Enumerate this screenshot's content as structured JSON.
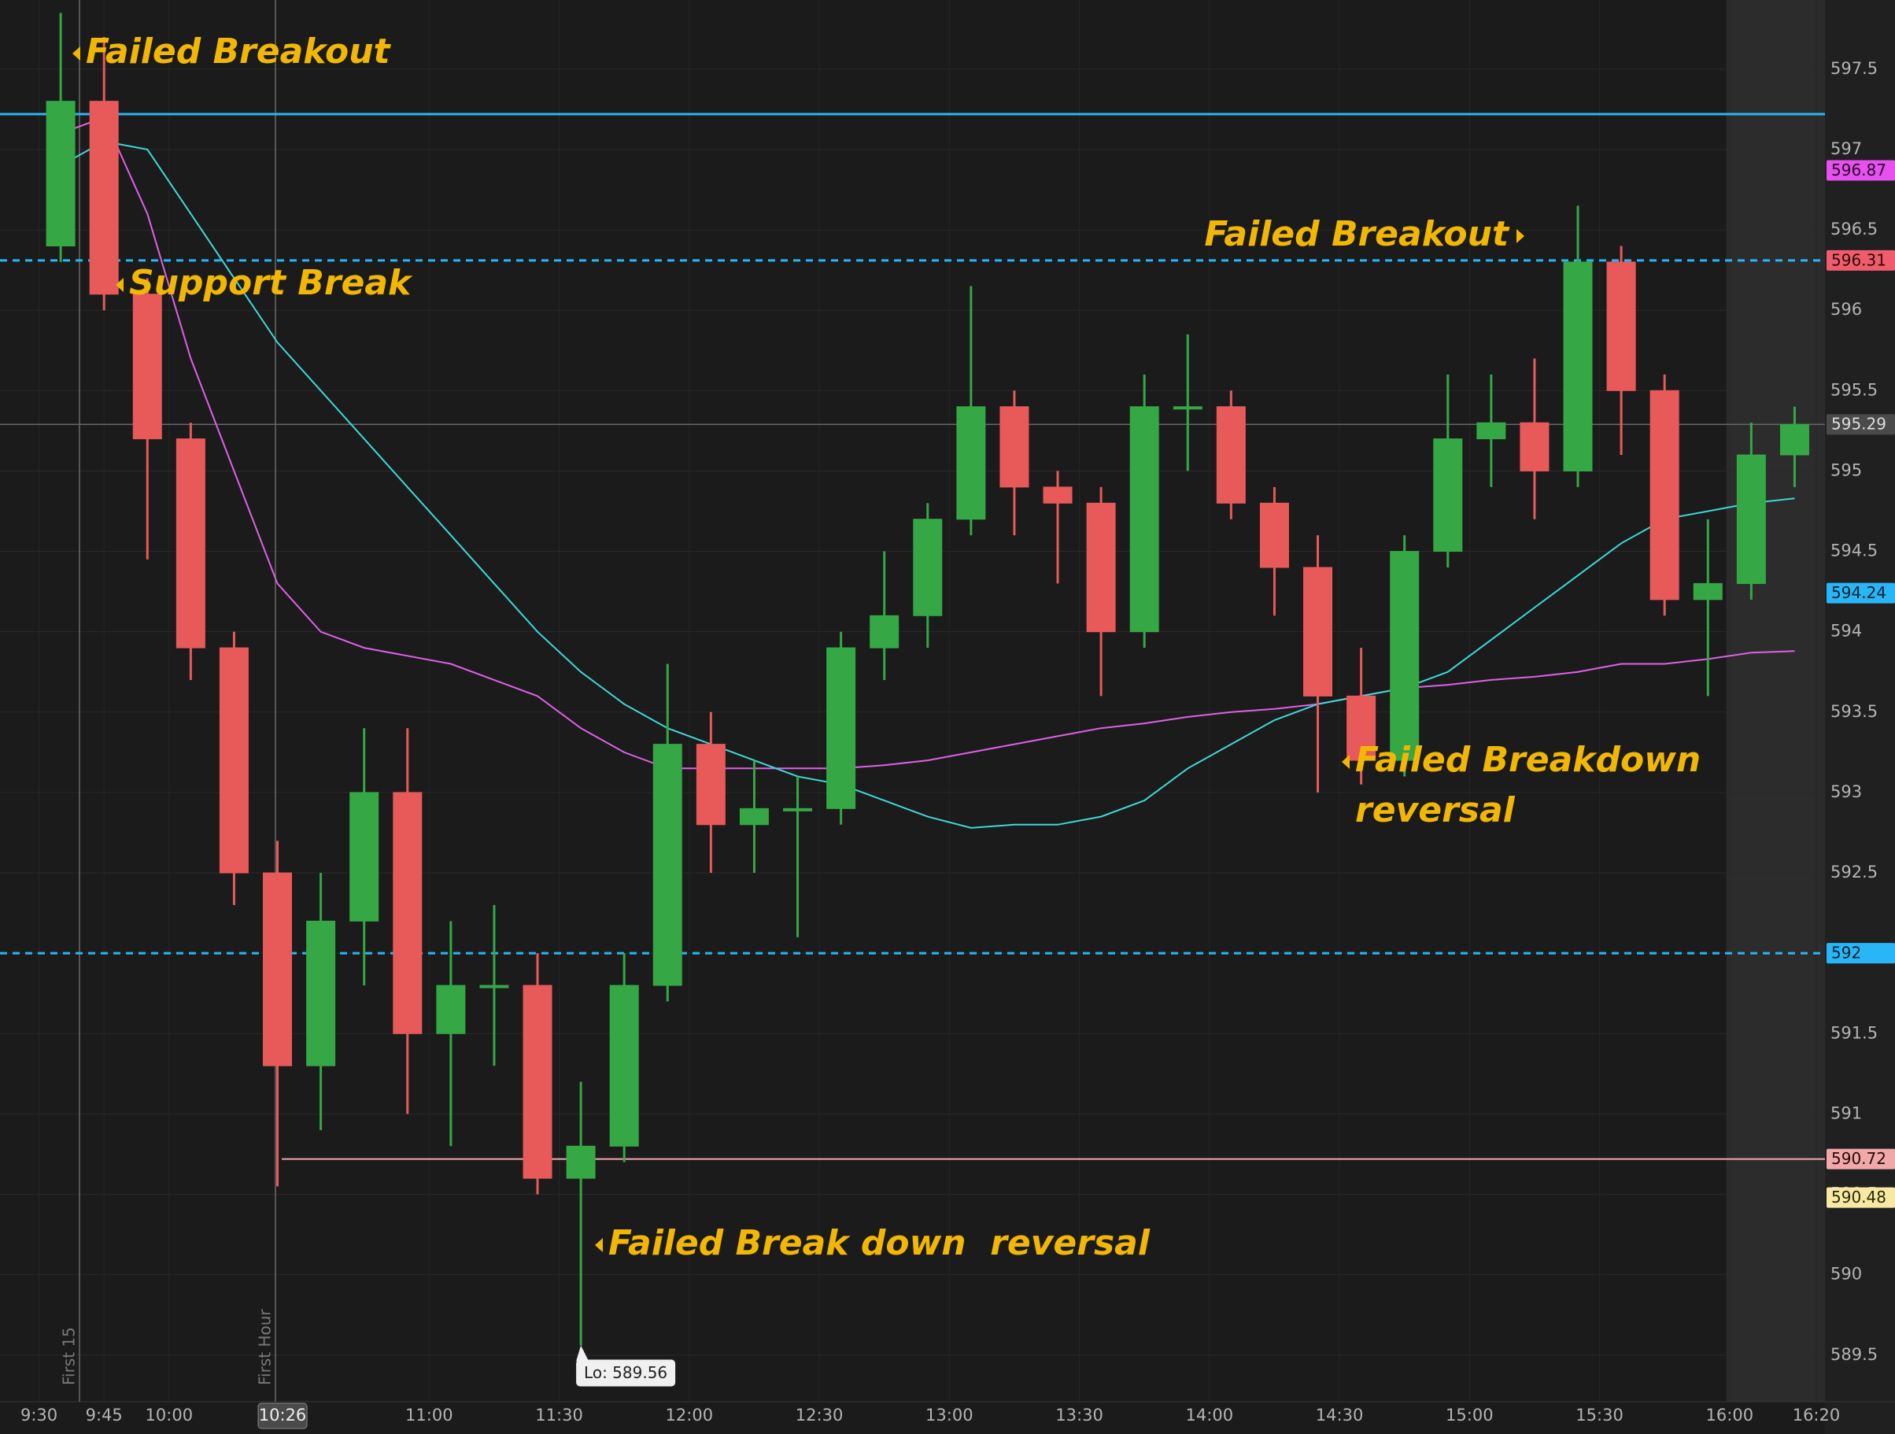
{
  "chart_data": {
    "type": "candlestick",
    "x": [
      "9:30",
      "9:40",
      "9:50",
      "10:00",
      "10:10",
      "10:20",
      "10:30",
      "10:40",
      "10:50",
      "11:00",
      "11:10",
      "11:20",
      "11:30",
      "11:40",
      "11:50",
      "12:00",
      "12:10",
      "12:20",
      "12:30",
      "12:40",
      "12:50",
      "13:00",
      "13:10",
      "13:20",
      "13:30",
      "13:40",
      "13:50",
      "14:00",
      "14:10",
      "14:20",
      "14:30",
      "14:40",
      "14:50",
      "15:00",
      "15:10",
      "15:20",
      "15:30",
      "15:40",
      "15:50",
      "16:00",
      "16:10"
    ],
    "open": [
      596.4,
      597.3,
      596.1,
      595.2,
      593.9,
      592.5,
      591.3,
      592.2,
      593.0,
      591.5,
      591.8,
      591.8,
      590.6,
      590.8,
      591.8,
      593.3,
      592.8,
      592.9,
      592.9,
      593.9,
      594.1,
      594.7,
      595.4,
      594.9,
      594.8,
      594.0,
      595.4,
      595.4,
      594.8,
      594.4,
      593.6,
      593.2,
      594.5,
      595.2,
      595.3,
      595.0,
      596.3,
      595.5,
      594.2,
      594.3,
      595.1
    ],
    "high": [
      597.85,
      597.7,
      596.2,
      595.3,
      594.0,
      592.7,
      592.5,
      593.4,
      593.4,
      592.2,
      592.3,
      592.0,
      591.2,
      592.0,
      593.8,
      593.5,
      593.2,
      593.1,
      594.0,
      594.5,
      594.8,
      596.15,
      595.5,
      595.0,
      594.9,
      595.6,
      595.85,
      595.5,
      594.9,
      594.6,
      593.9,
      594.6,
      595.6,
      595.6,
      595.7,
      596.65,
      596.4,
      595.6,
      594.7,
      595.3,
      595.4
    ],
    "low": [
      596.3,
      596.0,
      594.45,
      593.7,
      592.3,
      590.55,
      590.9,
      591.8,
      591.0,
      590.8,
      591.3,
      590.5,
      589.56,
      590.7,
      591.7,
      592.5,
      592.5,
      592.1,
      592.8,
      593.7,
      593.9,
      594.6,
      594.6,
      594.3,
      593.6,
      593.9,
      595.0,
      594.7,
      594.1,
      593.0,
      593.05,
      593.1,
      594.4,
      594.9,
      594.7,
      594.9,
      595.1,
      594.1,
      593.6,
      594.2,
      594.9
    ],
    "close": [
      597.3,
      596.1,
      595.2,
      593.9,
      592.5,
      591.3,
      592.2,
      593.0,
      591.5,
      591.8,
      591.8,
      590.6,
      590.8,
      591.8,
      593.3,
      592.8,
      592.9,
      592.9,
      593.9,
      594.1,
      594.7,
      595.4,
      594.9,
      594.8,
      594.0,
      595.4,
      595.4,
      594.8,
      594.4,
      593.6,
      593.2,
      594.5,
      595.2,
      595.3,
      595.0,
      596.3,
      595.5,
      594.2,
      594.3,
      595.1,
      595.29
    ],
    "up_color": "#35a845",
    "down_color": "#e85a5a",
    "moving_averages": [
      {
        "color": "#e060e8",
        "values": [
          597.1,
          597.2,
          596.6,
          595.7,
          595.0,
          594.3,
          594.0,
          593.9,
          593.85,
          593.8,
          593.7,
          593.6,
          593.4,
          593.25,
          593.15,
          593.15,
          593.15,
          593.15,
          593.15,
          593.17,
          593.2,
          593.25,
          593.3,
          593.35,
          593.4,
          593.43,
          593.47,
          593.5,
          593.52,
          593.55,
          593.6,
          593.65,
          593.67,
          593.7,
          593.72,
          593.75,
          593.8,
          593.8,
          593.83,
          593.87,
          593.88
        ]
      },
      {
        "color": "#3fd8d8",
        "values": [
          596.9,
          597.05,
          597.0,
          596.6,
          596.2,
          595.8,
          595.5,
          595.2,
          594.9,
          594.6,
          594.3,
          594.0,
          593.75,
          593.55,
          593.4,
          593.3,
          593.2,
          593.1,
          593.05,
          592.95,
          592.85,
          592.78,
          592.8,
          592.8,
          592.85,
          592.95,
          593.15,
          593.3,
          593.45,
          593.55,
          593.6,
          593.65,
          593.75,
          593.95,
          594.15,
          594.35,
          594.55,
          594.7,
          594.75,
          594.8,
          594.83
        ]
      }
    ],
    "xlim": [
      "9:21",
      "16:22"
    ],
    "xticks": [
      "9:30",
      "9:45",
      "10:00",
      "11:00",
      "11:30",
      "12:00",
      "12:30",
      "13:00",
      "13:30",
      "14:00",
      "14:30",
      "15:00",
      "15:30",
      "16:00",
      "16:20"
    ],
    "cursor": "10:26",
    "ylim": [
      589.21,
      597.93
    ],
    "yticks": [
      589.5,
      590,
      590.5,
      591,
      591.5,
      592,
      592.5,
      593,
      593.5,
      594,
      594.5,
      595,
      595.5,
      596,
      596.5,
      597,
      597.5
    ],
    "grid": true,
    "levels": [
      {
        "value": 597.22,
        "color": "#29b6f6",
        "style": "solid",
        "label": false
      },
      {
        "value": 596.87,
        "color": "#e651f0",
        "text_color": "#2a0a2a",
        "style": "none",
        "label": true
      },
      {
        "value": 596.31,
        "color": "#29b6f6",
        "box_color": "#ef5d6d",
        "text_color": "#2a0a0a",
        "style": "dashed",
        "label": true
      },
      {
        "value": 595.29,
        "color": "#666666",
        "box_color": "#4a4a4a",
        "text_color": "#dddddd",
        "style": "solid",
        "label": true
      },
      {
        "value": 594.24,
        "color": "#29b6f6",
        "text_color": "#062030",
        "style": "none",
        "label": true
      },
      {
        "value": 592,
        "color": "#29b6f6",
        "text_color": "#062030",
        "style": "dashed",
        "label": true
      },
      {
        "value": 590.72,
        "color": "#f0a8a8",
        "text_color": "#2a0a0a",
        "style": "solid",
        "from": "10:26",
        "label": true
      },
      {
        "value": 590.48,
        "color": "#f7e8a4",
        "text_color": "#2a2a0a",
        "style": "none",
        "label": true
      }
    ],
    "annotations": [
      "Failed Breakout",
      "Support Break",
      "Failed Breakout",
      "Failed Breakdown",
      "reversal",
      "Failed Break down  reversal"
    ],
    "low_label": "Lo: 589.56",
    "markers": [
      "First 15",
      "First Hour"
    ]
  }
}
